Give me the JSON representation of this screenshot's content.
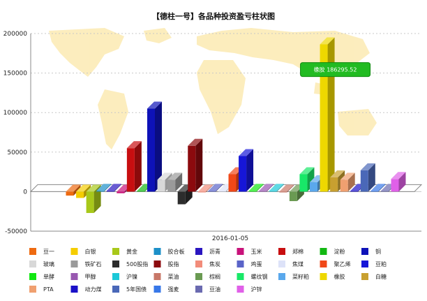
{
  "chart_data": {
    "type": "bar",
    "title": "【德柱一号】各品种投资盈亏柱状图",
    "xlabel": "",
    "ylabel": "",
    "ylim": [
      -50000,
      200000
    ],
    "yticks": [
      -50000,
      0,
      50000,
      100000,
      150000,
      200000
    ],
    "categories": [
      "2016-01-05"
    ],
    "legend_position": "bottom",
    "grid": true,
    "tooltip": {
      "label": "橡胶 186295.52",
      "series": "橡胶"
    },
    "series": [
      {
        "name": "豆一",
        "value": -5000,
        "color": "#ee6a10"
      },
      {
        "name": "白银",
        "value": -8000,
        "color": "#f5cd00"
      },
      {
        "name": "黄金",
        "value": -27000,
        "color": "#a8c81a"
      },
      {
        "name": "胶合板",
        "value": 1000,
        "color": "#1c90c8"
      },
      {
        "name": "沥青",
        "value": 1000,
        "color": "#2a16c0"
      },
      {
        "name": "玉米",
        "value": -2000,
        "color": "#c8127a"
      },
      {
        "name": "郑棉",
        "value": 55000,
        "color": "#c80e10"
      },
      {
        "name": "淀粉",
        "value": 1000,
        "color": "#12b812"
      },
      {
        "name": "铜",
        "value": 105000,
        "color": "#0e12b8"
      },
      {
        "name": "玻璃",
        "value": 15000,
        "color": "#d8d8d8"
      },
      {
        "name": "铁矿石",
        "value": 15000,
        "color": "#9a9a9a"
      },
      {
        "name": "500股指",
        "value": -16000,
        "color": "#2c2c2c"
      },
      {
        "name": "股指",
        "value": 58000,
        "color": "#8c0a0e"
      },
      {
        "name": "焦炭",
        "value": -1000,
        "color": "#f28c7a"
      },
      {
        "name": "鸡蛋",
        "value": 1000,
        "color": "#5a64c8"
      },
      {
        "name": "焦煤",
        "value": 1000,
        "color": "#dde2f8"
      },
      {
        "name": "聚乙烯",
        "value": 22000,
        "color": "#f04818"
      },
      {
        "name": "豆粕",
        "value": 45000,
        "color": "#1616d8"
      },
      {
        "name": "单酵",
        "value": 1000,
        "color": "#12e812"
      },
      {
        "name": "甲醇",
        "value": 1000,
        "color": "#9858b0"
      },
      {
        "name": "沪镍",
        "value": 1000,
        "color": "#1cc8d8"
      },
      {
        "name": "菜油",
        "value": -1000,
        "color": "#c87868"
      },
      {
        "name": "棕榈",
        "value": -12000,
        "color": "#6a9a52"
      },
      {
        "name": "螺纹钢",
        "value": 22000,
        "color": "#18e868"
      },
      {
        "name": "菜籽粕",
        "value": 12000,
        "color": "#5aa8ec"
      },
      {
        "name": "橡胶",
        "value": 186295.52,
        "color": "#eed800"
      },
      {
        "name": "白糖",
        "value": 18000,
        "color": "#c8a030"
      },
      {
        "name": "PTA",
        "value": 15000,
        "color": "#f0a070"
      },
      {
        "name": "动力煤",
        "value": 1000,
        "color": "#1a10c8"
      },
      {
        "name": "5年国债",
        "value": 27000,
        "color": "#4a68b8"
      },
      {
        "name": "强麦",
        "value": 1000,
        "color": "#3878e8"
      },
      {
        "name": "豆油",
        "value": 1000,
        "color": "#6a6ab0"
      },
      {
        "name": "沪锌",
        "value": 16000,
        "color": "#e060e8"
      }
    ]
  }
}
